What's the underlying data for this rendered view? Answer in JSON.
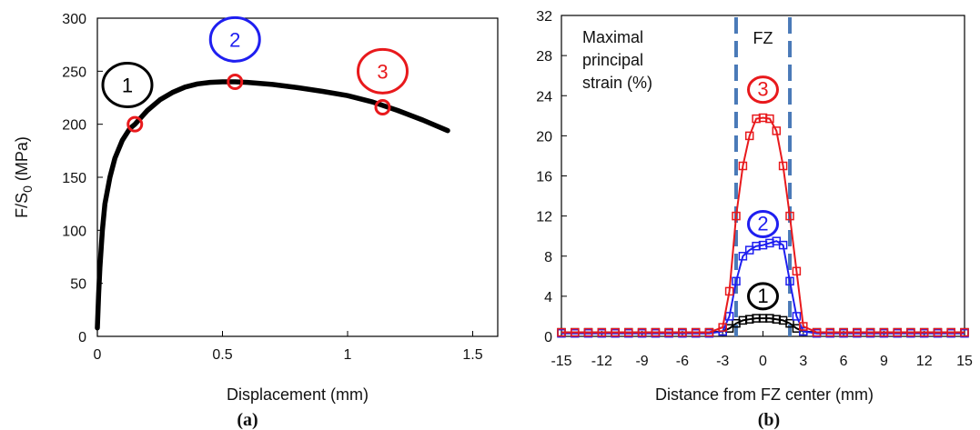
{
  "chart_data": [
    {
      "type": "line",
      "panel_label": "(a)",
      "xlabel": "Displacement (mm)",
      "ylabel_main": "F/S",
      "ylabel_sub": "0",
      "ylabel_unit": " (MPa)",
      "xlim": [
        0,
        1.6
      ],
      "ylim": [
        0,
        300
      ],
      "xticks": [
        0,
        0.5,
        1,
        1.5
      ],
      "xtick_labels": [
        "0",
        "0.5",
        "1",
        "1.5"
      ],
      "yticks": [
        0,
        50,
        100,
        150,
        200,
        250,
        300
      ],
      "ytick_labels": [
        "0",
        "50",
        "100",
        "150",
        "200",
        "250",
        "300"
      ],
      "colors": {
        "curve": "#000000",
        "point": "#e8191c"
      },
      "series": [
        {
          "x": [
            0.0,
            0.005,
            0.01,
            0.02,
            0.03,
            0.05,
            0.07,
            0.1,
            0.13,
            0.15,
            0.2,
            0.25,
            0.3,
            0.35,
            0.4,
            0.45,
            0.5,
            0.55,
            0.6,
            0.7,
            0.8,
            0.9,
            1.0,
            1.1,
            1.15,
            1.2,
            1.3,
            1.4
          ],
          "y": [
            8,
            40,
            65,
            100,
            125,
            150,
            168,
            185,
            196,
            200,
            213,
            223,
            230,
            235,
            238,
            239.5,
            240,
            240,
            239.5,
            237.5,
            234.5,
            231,
            227,
            221,
            217,
            213,
            204,
            194
          ]
        }
      ],
      "points": [
        {
          "label": "1",
          "x": 0.15,
          "y": 200,
          "color": "#000000",
          "label_x": 0.12,
          "label_y": 237
        },
        {
          "label": "2",
          "x": 0.55,
          "y": 240,
          "color": "#1f1ff0",
          "label_x": 0.55,
          "label_y": 280
        },
        {
          "label": "3",
          "x": 1.14,
          "y": 216,
          "color": "#e8191c",
          "label_x": 1.14,
          "label_y": 250
        }
      ]
    },
    {
      "type": "line",
      "panel_label": "(b)",
      "xlabel": "Distance from FZ center (mm)",
      "annotation": [
        "Maximal",
        "principal",
        "strain (%)"
      ],
      "fz_label": "FZ",
      "fz_bounds": [
        -2,
        2
      ],
      "xlim": [
        -15,
        15
      ],
      "ylim": [
        0,
        32
      ],
      "xticks": [
        -15,
        -12,
        -9,
        -6,
        -3,
        0,
        3,
        6,
        9,
        12,
        15
      ],
      "xtick_labels": [
        "-15",
        "-12",
        "-9",
        "-6",
        "-3",
        "0",
        "3",
        "6",
        "9",
        "12",
        "15"
      ],
      "yticks": [
        0,
        4,
        8,
        12,
        16,
        20,
        24,
        28,
        32
      ],
      "ytick_labels": [
        "0",
        "4",
        "8",
        "12",
        "16",
        "20",
        "24",
        "28",
        "32"
      ],
      "colors": {
        "fz_line": "#4a7ab8",
        "fz_text": "#4a7ab8"
      },
      "series": [
        {
          "name": "1",
          "color": "#000000",
          "x": [
            -15,
            -14,
            -13,
            -12,
            -11,
            -10,
            -9,
            -8,
            -7,
            -6,
            -5,
            -4,
            -3,
            -2.5,
            -2,
            -1.5,
            -1,
            -0.5,
            0,
            0.5,
            1,
            1.5,
            2,
            2.5,
            3,
            4,
            5,
            6,
            7,
            8,
            9,
            10,
            11,
            12,
            13,
            14,
            15
          ],
          "y": [
            0.4,
            0.4,
            0.4,
            0.4,
            0.4,
            0.4,
            0.4,
            0.4,
            0.4,
            0.4,
            0.4,
            0.4,
            0.5,
            0.8,
            1.3,
            1.6,
            1.7,
            1.8,
            1.8,
            1.8,
            1.7,
            1.6,
            1.3,
            0.8,
            0.5,
            0.4,
            0.4,
            0.4,
            0.4,
            0.4,
            0.4,
            0.4,
            0.4,
            0.4,
            0.4,
            0.4,
            0.4
          ],
          "label_x": 0,
          "label_y": 4
        },
        {
          "name": "2",
          "color": "#1f1ff0",
          "x": [
            -15,
            -14,
            -13,
            -12,
            -11,
            -10,
            -9,
            -8,
            -7,
            -6,
            -5,
            -4,
            -3,
            -2.5,
            -2,
            -1.5,
            -1,
            -0.5,
            0,
            0.5,
            1,
            1.5,
            2,
            2.5,
            3,
            4,
            5,
            6,
            7,
            8,
            9,
            10,
            11,
            12,
            13,
            14,
            15
          ],
          "y": [
            0.3,
            0.3,
            0.3,
            0.3,
            0.3,
            0.3,
            0.3,
            0.3,
            0.3,
            0.3,
            0.3,
            0.3,
            0.5,
            2.0,
            5.5,
            8.0,
            8.6,
            9.0,
            9.1,
            9.3,
            9.5,
            9.1,
            5.5,
            2.0,
            0.5,
            0.3,
            0.3,
            0.3,
            0.3,
            0.3,
            0.3,
            0.3,
            0.3,
            0.3,
            0.3,
            0.3,
            0.3
          ],
          "label_x": 0,
          "label_y": 11.2
        },
        {
          "name": "3",
          "color": "#e8191c",
          "x": [
            -15,
            -14,
            -13,
            -12,
            -11,
            -10,
            -9,
            -8,
            -7,
            -6,
            -5,
            -4,
            -3,
            -2.5,
            -2,
            -1.5,
            -1,
            -0.5,
            0,
            0.5,
            1,
            1.5,
            2,
            2.5,
            3,
            4,
            5,
            6,
            7,
            8,
            9,
            10,
            11,
            12,
            13,
            14,
            15
          ],
          "y": [
            0.4,
            0.4,
            0.4,
            0.4,
            0.4,
            0.4,
            0.4,
            0.4,
            0.4,
            0.4,
            0.4,
            0.4,
            0.9,
            4.5,
            12.0,
            17.0,
            20.0,
            21.7,
            21.8,
            21.7,
            20.5,
            17.0,
            12.0,
            6.5,
            1.0,
            0.4,
            0.4,
            0.4,
            0.4,
            0.4,
            0.4,
            0.4,
            0.4,
            0.4,
            0.4,
            0.4,
            0.4
          ],
          "label_x": 0,
          "label_y": 24.6
        }
      ]
    }
  ]
}
